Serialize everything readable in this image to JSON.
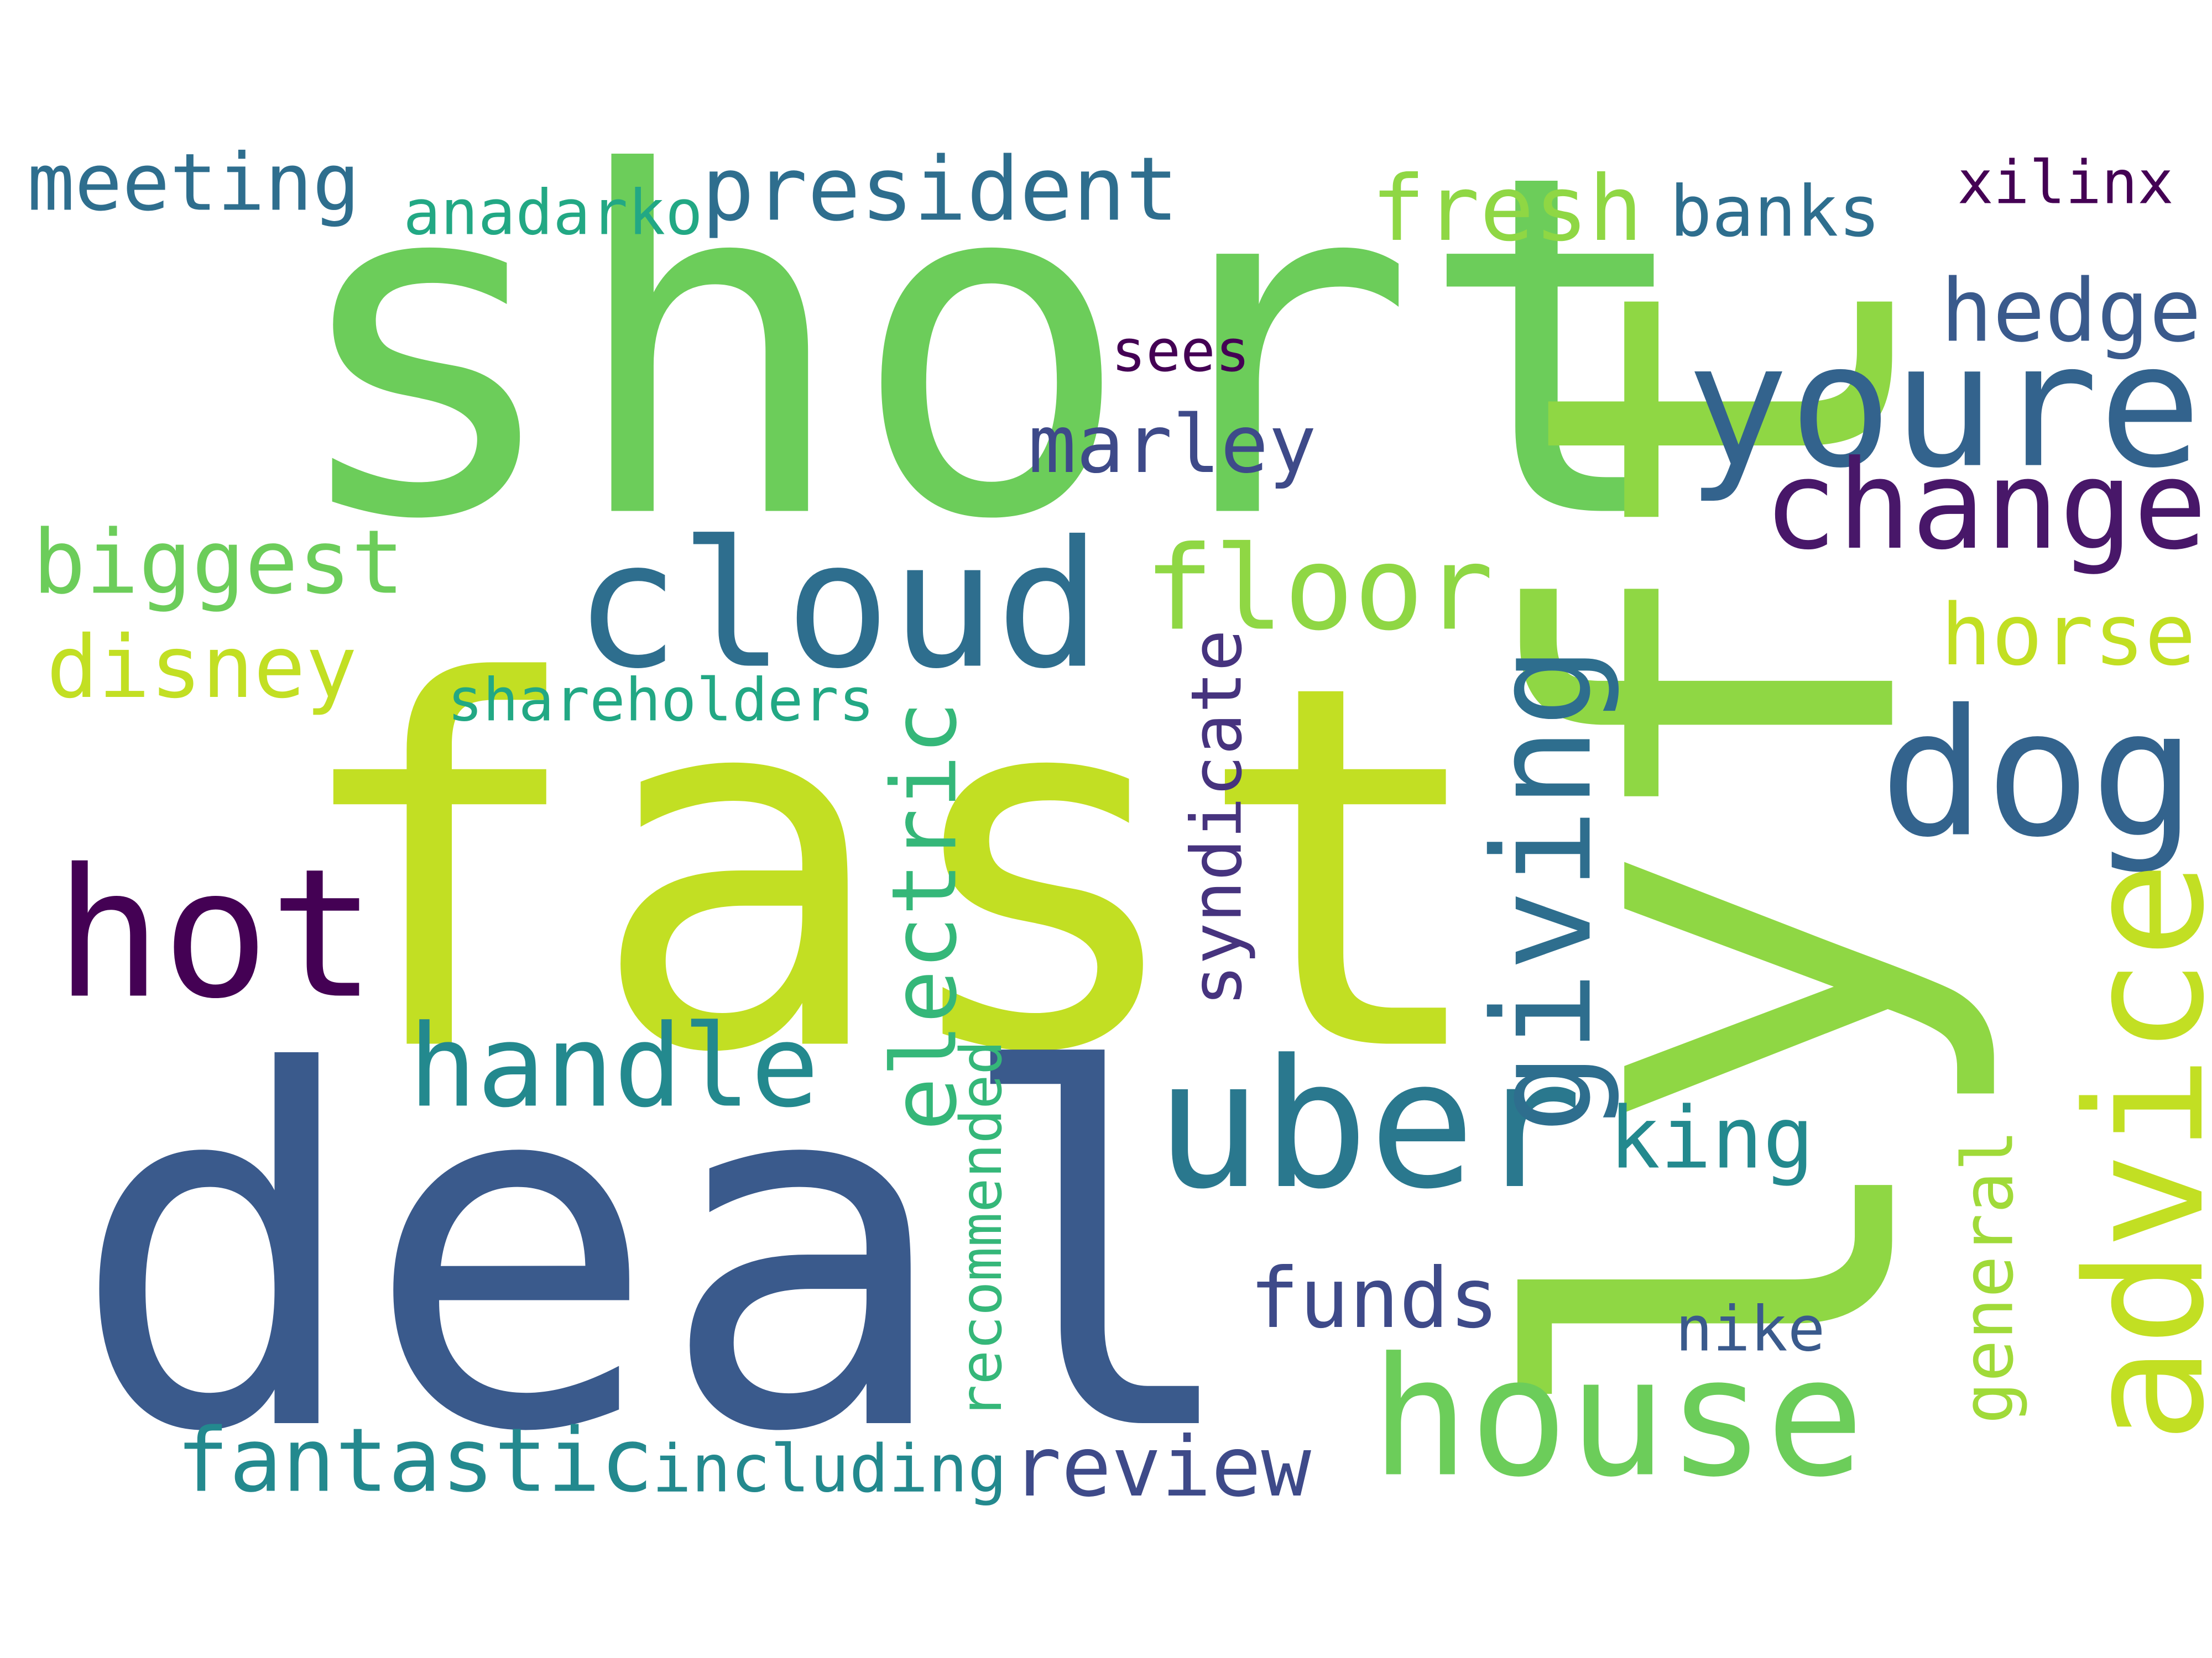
{
  "words": [
    {
      "text": "short",
      "color": "#6ccd5a"
    },
    {
      "text": "fast",
      "color": "#c2df23"
    },
    {
      "text": "deal",
      "color": "#3a5a8c"
    },
    {
      "text": "lyft",
      "color": "#8fd744"
    },
    {
      "text": "cloud",
      "color": "#2e6e8e"
    },
    {
      "text": "youre",
      "color": "#33638d"
    },
    {
      "text": "hot",
      "color": "#440154"
    },
    {
      "text": "dog",
      "color": "#33638d"
    },
    {
      "text": "uber",
      "color": "#2a788e"
    },
    {
      "text": "house",
      "color": "#6ccd5a"
    },
    {
      "text": "advice",
      "color": "#c2df23"
    },
    {
      "text": "change",
      "color": "#481769"
    },
    {
      "text": "floor",
      "color": "#8fd744"
    },
    {
      "text": "handle",
      "color": "#23898e"
    },
    {
      "text": "giving",
      "color": "#2e6e8e"
    },
    {
      "text": "president",
      "color": "#2e6e8e"
    },
    {
      "text": "meeting",
      "color": "#2e6e8e"
    },
    {
      "text": "fresh",
      "color": "#8fd744"
    },
    {
      "text": "hedge",
      "color": "#3a5a8c"
    },
    {
      "text": "biggest",
      "color": "#6ccd5a"
    },
    {
      "text": "disney",
      "color": "#c2df23"
    },
    {
      "text": "horse",
      "color": "#c2df23"
    },
    {
      "text": "electric",
      "color": "#35b779"
    },
    {
      "text": "syndicate",
      "color": "#46337e"
    },
    {
      "text": "marley",
      "color": "#3e4a89"
    },
    {
      "text": "king",
      "color": "#23898e"
    },
    {
      "text": "funds",
      "color": "#3e4a89"
    },
    {
      "text": "review",
      "color": "#3e4a89"
    },
    {
      "text": "fantastic",
      "color": "#23898e"
    },
    {
      "text": "including",
      "color": "#23898e"
    },
    {
      "text": "general",
      "color": "#a0da39"
    },
    {
      "text": "recommended",
      "color": "#35b779"
    },
    {
      "text": "shareholders",
      "color": "#22a884"
    },
    {
      "text": "anadarko",
      "color": "#22a884"
    },
    {
      "text": "banks",
      "color": "#2e6e8e"
    },
    {
      "text": "xilinx",
      "color": "#440154"
    },
    {
      "text": "sees",
      "color": "#440154"
    },
    {
      "text": "nike",
      "color": "#3a5a8c"
    }
  ]
}
